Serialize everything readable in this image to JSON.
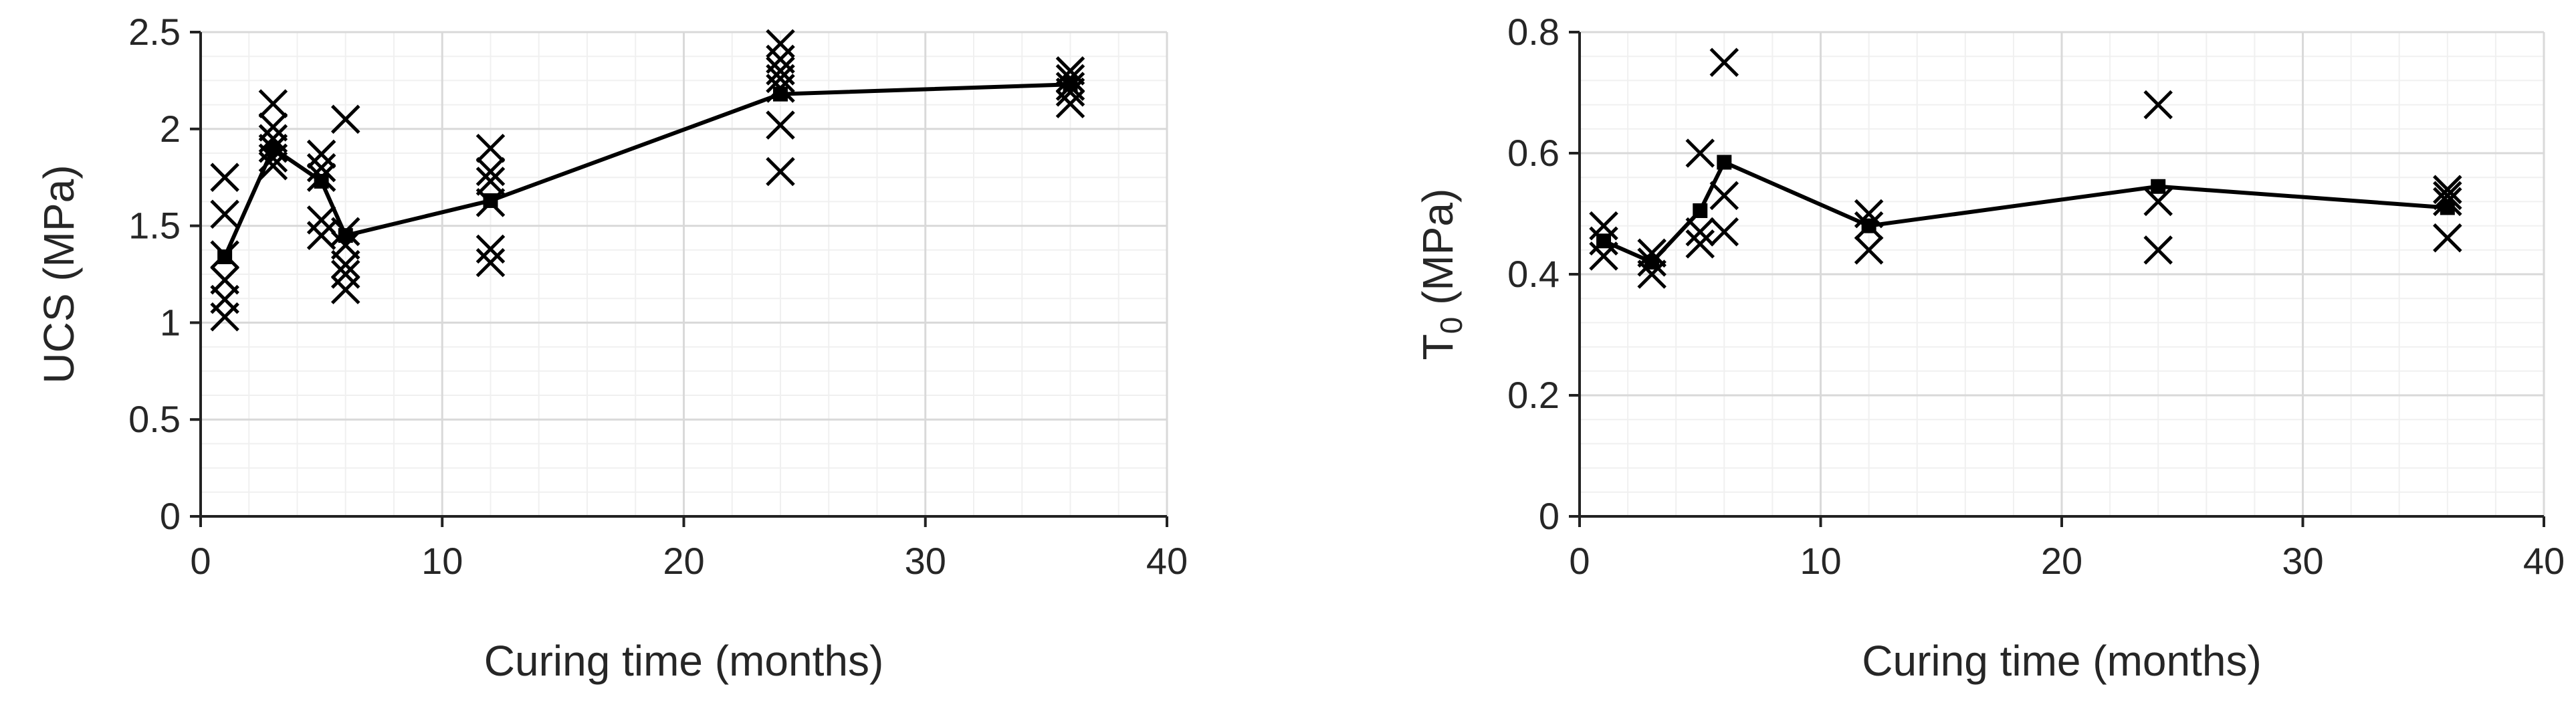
{
  "chart_data": [
    {
      "type": "scatter",
      "xlabel": "Curing time (months)",
      "ylabel": "UCS (MPa)",
      "ylabel_sub": "",
      "ylabel_tail": "",
      "xlim": [
        0,
        40
      ],
      "ylim": [
        0,
        2.5
      ],
      "xticks": [
        0,
        10,
        20,
        30,
        40
      ],
      "yticks": [
        0,
        0.5,
        1,
        1.5,
        2,
        2.5
      ],
      "ytick_labels": [
        "0",
        "0.5",
        "1",
        "1.5",
        "2",
        "2.5"
      ],
      "grid": true,
      "series": [
        {
          "marker": "x",
          "points": [
            [
              1,
              1.75
            ],
            [
              1,
              1.56
            ],
            [
              1,
              1.35
            ],
            [
              1,
              1.22
            ],
            [
              1,
              1.12
            ],
            [
              1,
              1.03
            ],
            [
              3,
              2.13
            ],
            [
              3,
              2.01
            ],
            [
              3,
              1.95
            ],
            [
              3,
              1.9
            ],
            [
              3,
              1.85
            ],
            [
              3,
              1.81
            ],
            [
              5,
              1.87
            ],
            [
              5,
              1.8
            ],
            [
              5,
              1.75
            ],
            [
              5,
              1.53
            ],
            [
              5,
              1.45
            ],
            [
              6,
              2.05
            ],
            [
              6,
              1.47
            ],
            [
              6,
              1.4
            ],
            [
              6,
              1.3
            ],
            [
              6,
              1.25
            ],
            [
              6,
              1.17
            ],
            [
              12,
              1.9
            ],
            [
              12,
              1.78
            ],
            [
              12,
              1.73
            ],
            [
              12,
              1.62
            ],
            [
              12,
              1.38
            ],
            [
              12,
              1.31
            ],
            [
              24,
              2.44
            ],
            [
              24,
              2.36
            ],
            [
              24,
              2.3
            ],
            [
              24,
              2.26
            ],
            [
              24,
              2.21
            ],
            [
              24,
              2.02
            ],
            [
              24,
              1.78
            ],
            [
              36,
              2.3
            ],
            [
              36,
              2.26
            ],
            [
              36,
              2.22
            ],
            [
              36,
              2.19
            ],
            [
              36,
              2.13
            ]
          ]
        },
        {
          "marker": "square-line",
          "x": [
            1,
            3,
            5,
            6,
            12,
            24,
            36
          ],
          "y": [
            1.34,
            1.9,
            1.73,
            1.45,
            1.63,
            2.18,
            2.23
          ]
        }
      ]
    },
    {
      "type": "scatter",
      "xlabel": "Curing time (months)",
      "ylabel": "T",
      "ylabel_sub": "0",
      "ylabel_tail": " (MPa)",
      "xlim": [
        0,
        40
      ],
      "ylim": [
        0,
        0.8
      ],
      "xticks": [
        0,
        10,
        20,
        30,
        40
      ],
      "yticks": [
        0,
        0.2,
        0.4,
        0.6,
        0.8
      ],
      "ytick_labels": [
        "0",
        "0.2",
        "0.4",
        "0.6",
        "0.8"
      ],
      "grid": true,
      "series": [
        {
          "marker": "x",
          "points": [
            [
              1,
              0.48
            ],
            [
              1,
              0.455
            ],
            [
              1,
              0.43
            ],
            [
              3,
              0.435
            ],
            [
              3,
              0.42
            ],
            [
              3,
              0.4
            ],
            [
              5,
              0.6
            ],
            [
              5,
              0.47
            ],
            [
              5,
              0.45
            ],
            [
              6,
              0.75
            ],
            [
              6,
              0.53
            ],
            [
              6,
              0.47
            ],
            [
              12,
              0.5
            ],
            [
              12,
              0.48
            ],
            [
              12,
              0.44
            ],
            [
              24,
              0.68
            ],
            [
              24,
              0.52
            ],
            [
              24,
              0.44
            ],
            [
              36,
              0.54
            ],
            [
              36,
              0.53
            ],
            [
              36,
              0.52
            ],
            [
              36,
              0.46
            ]
          ]
        },
        {
          "marker": "square-line",
          "x": [
            1,
            3,
            5,
            6,
            12,
            24,
            36
          ],
          "y": [
            0.455,
            0.42,
            0.505,
            0.585,
            0.48,
            0.545,
            0.51
          ]
        }
      ]
    }
  ]
}
